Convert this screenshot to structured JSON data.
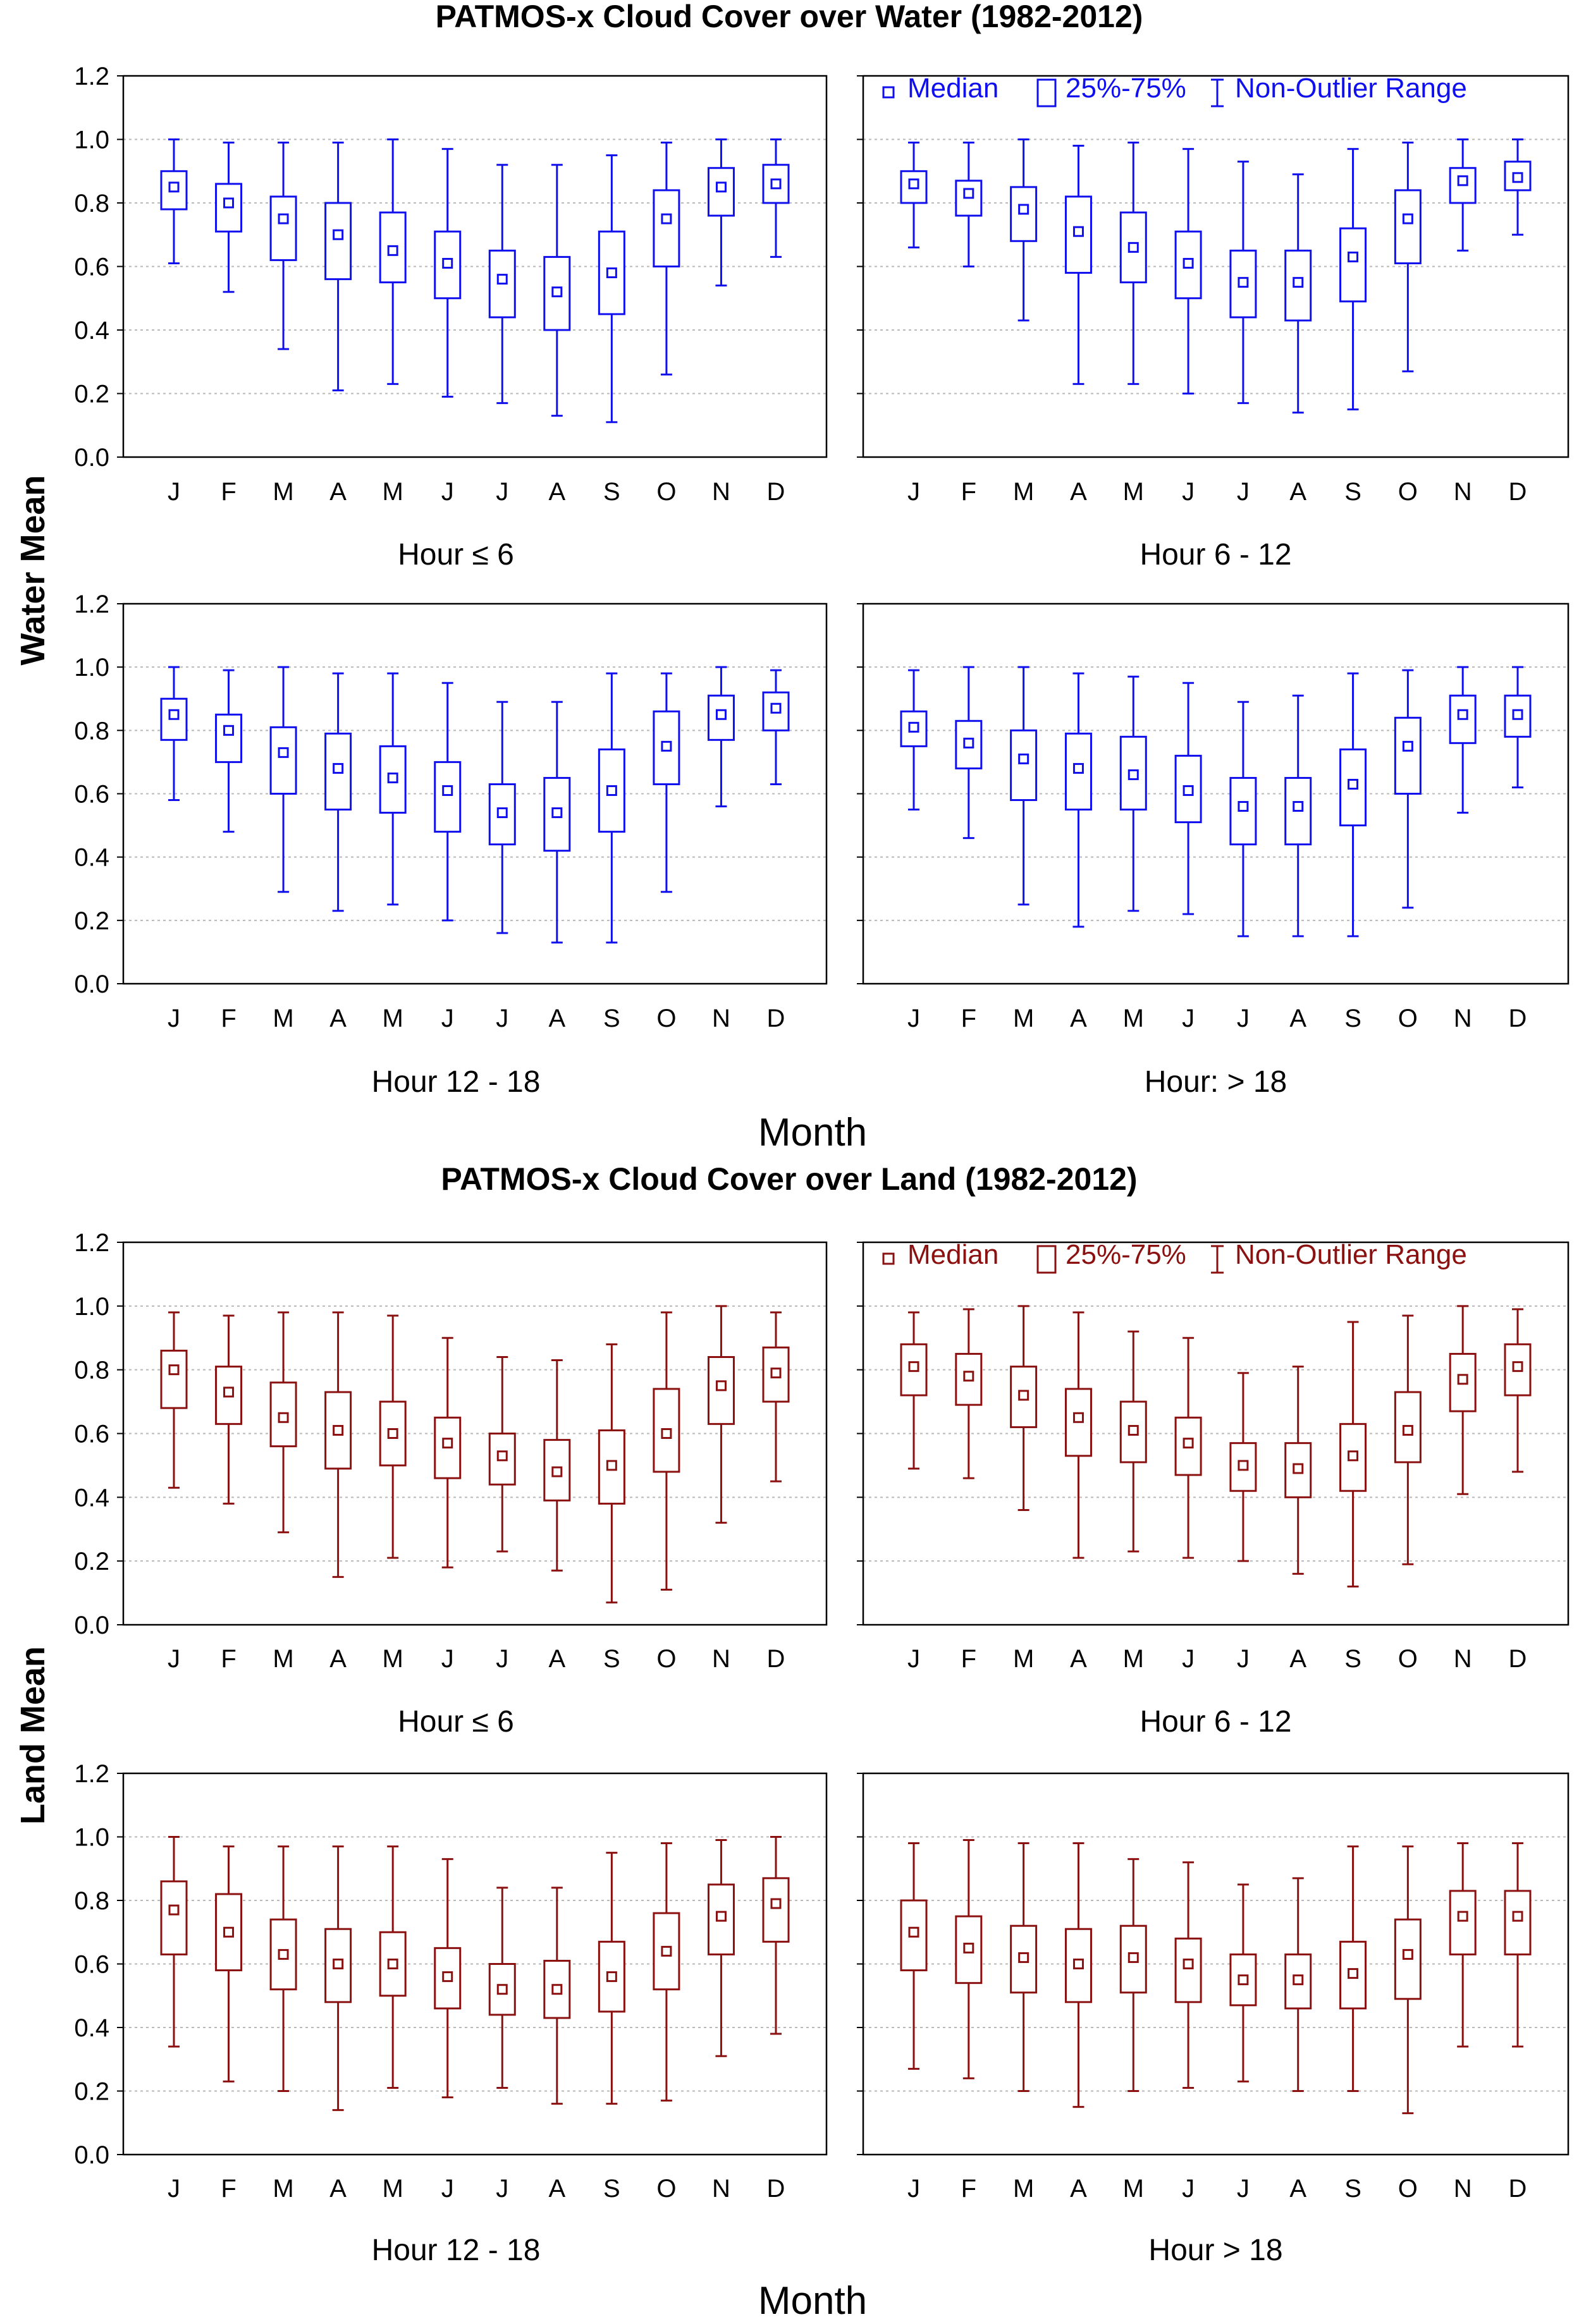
{
  "colors": {
    "water": "#1010ee",
    "land": "#8b1010"
  },
  "legend": {
    "median": "Median",
    "iqr": "25%-75%",
    "range": "Non-Outlier Range"
  },
  "chart_data": [
    {
      "type": "boxplot",
      "title": "PATMOS-x Cloud Cover over Water (1982-2012)",
      "xlabel": "Month",
      "ylabel": "Water Mean",
      "color_key": "water",
      "ylim": [
        0,
        1.2
      ],
      "yticks": [
        "0.0",
        "0.2",
        "0.4",
        "0.6",
        "0.8",
        "1.0",
        "1.2"
      ],
      "categories": [
        "J",
        "F",
        "M",
        "A",
        "M",
        "J",
        "J",
        "A",
        "S",
        "O",
        "N",
        "D"
      ],
      "panels": [
        {
          "subtitle": "Hour ≤  6",
          "min": [
            0.61,
            0.52,
            0.34,
            0.21,
            0.23,
            0.19,
            0.17,
            0.13,
            0.11,
            0.26,
            0.54,
            0.63
          ],
          "q1": [
            0.78,
            0.71,
            0.62,
            0.56,
            0.55,
            0.5,
            0.44,
            0.4,
            0.45,
            0.6,
            0.76,
            0.8
          ],
          "median": [
            0.85,
            0.8,
            0.75,
            0.7,
            0.65,
            0.61,
            0.56,
            0.52,
            0.58,
            0.75,
            0.85,
            0.86
          ],
          "q3": [
            0.9,
            0.86,
            0.82,
            0.8,
            0.77,
            0.71,
            0.65,
            0.63,
            0.71,
            0.84,
            0.91,
            0.92
          ],
          "max": [
            1.0,
            0.99,
            0.99,
            0.99,
            1.0,
            0.97,
            0.92,
            0.92,
            0.95,
            0.99,
            1.0,
            1.0
          ]
        },
        {
          "subtitle": "Hour 6 - 12",
          "legend": true,
          "min": [
            0.66,
            0.6,
            0.43,
            0.23,
            0.23,
            0.2,
            0.17,
            0.14,
            0.15,
            0.27,
            0.65,
            0.7
          ],
          "q1": [
            0.8,
            0.76,
            0.68,
            0.58,
            0.55,
            0.5,
            0.44,
            0.43,
            0.49,
            0.61,
            0.8,
            0.84
          ],
          "median": [
            0.86,
            0.83,
            0.78,
            0.71,
            0.66,
            0.61,
            0.55,
            0.55,
            0.63,
            0.75,
            0.87,
            0.88
          ],
          "q3": [
            0.9,
            0.87,
            0.85,
            0.82,
            0.77,
            0.71,
            0.65,
            0.65,
            0.72,
            0.84,
            0.91,
            0.93
          ],
          "max": [
            0.99,
            0.99,
            1.0,
            0.98,
            0.99,
            0.97,
            0.93,
            0.89,
            0.97,
            0.99,
            1.0,
            1.0
          ]
        },
        {
          "subtitle": "Hour 12 - 18",
          "min": [
            0.58,
            0.48,
            0.29,
            0.23,
            0.25,
            0.2,
            0.16,
            0.13,
            0.13,
            0.29,
            0.56,
            0.63
          ],
          "q1": [
            0.77,
            0.7,
            0.6,
            0.55,
            0.54,
            0.48,
            0.44,
            0.42,
            0.48,
            0.63,
            0.77,
            0.8
          ],
          "median": [
            0.85,
            0.8,
            0.73,
            0.68,
            0.65,
            0.61,
            0.54,
            0.54,
            0.61,
            0.75,
            0.85,
            0.87
          ],
          "q3": [
            0.9,
            0.85,
            0.81,
            0.79,
            0.75,
            0.7,
            0.63,
            0.65,
            0.74,
            0.86,
            0.91,
            0.92
          ],
          "max": [
            1.0,
            0.99,
            1.0,
            0.98,
            0.98,
            0.95,
            0.89,
            0.89,
            0.98,
            0.98,
            1.0,
            0.99
          ]
        },
        {
          "subtitle": "Hour: > 18",
          "min": [
            0.55,
            0.46,
            0.25,
            0.18,
            0.23,
            0.22,
            0.15,
            0.15,
            0.15,
            0.24,
            0.54,
            0.62
          ],
          "q1": [
            0.75,
            0.68,
            0.58,
            0.55,
            0.55,
            0.51,
            0.44,
            0.44,
            0.5,
            0.6,
            0.76,
            0.78
          ],
          "median": [
            0.81,
            0.76,
            0.71,
            0.68,
            0.66,
            0.61,
            0.56,
            0.56,
            0.63,
            0.75,
            0.85,
            0.85
          ],
          "q3": [
            0.86,
            0.83,
            0.8,
            0.79,
            0.78,
            0.72,
            0.65,
            0.65,
            0.74,
            0.84,
            0.91,
            0.91
          ],
          "max": [
            0.99,
            1.0,
            1.0,
            0.98,
            0.97,
            0.95,
            0.89,
            0.91,
            0.98,
            0.99,
            1.0,
            1.0
          ]
        }
      ]
    },
    {
      "type": "boxplot",
      "title": "PATMOS-x Cloud Cover over Land (1982-2012)",
      "xlabel": "Month",
      "ylabel": "Land Mean",
      "color_key": "land",
      "ylim": [
        0,
        1.2
      ],
      "yticks": [
        "0.0",
        "0.2",
        "0.4",
        "0.6",
        "0.8",
        "1.0",
        "1.2"
      ],
      "categories": [
        "J",
        "F",
        "M",
        "A",
        "M",
        "J",
        "J",
        "A",
        "S",
        "O",
        "N",
        "D"
      ],
      "panels": [
        {
          "subtitle": "Hour ≤  6",
          "min": [
            0.43,
            0.38,
            0.29,
            0.15,
            0.21,
            0.18,
            0.23,
            0.17,
            0.07,
            0.11,
            0.32,
            0.45
          ],
          "q1": [
            0.68,
            0.63,
            0.56,
            0.49,
            0.5,
            0.46,
            0.44,
            0.39,
            0.38,
            0.48,
            0.63,
            0.7
          ],
          "median": [
            0.8,
            0.73,
            0.65,
            0.61,
            0.6,
            0.57,
            0.53,
            0.48,
            0.5,
            0.6,
            0.75,
            0.79
          ],
          "q3": [
            0.86,
            0.81,
            0.76,
            0.73,
            0.7,
            0.65,
            0.6,
            0.58,
            0.61,
            0.74,
            0.84,
            0.87
          ],
          "max": [
            0.98,
            0.97,
            0.98,
            0.98,
            0.97,
            0.9,
            0.84,
            0.83,
            0.88,
            0.98,
            1.0,
            0.98
          ]
        },
        {
          "subtitle": "Hour 6 - 12",
          "legend": true,
          "min": [
            0.49,
            0.46,
            0.36,
            0.21,
            0.23,
            0.21,
            0.2,
            0.16,
            0.12,
            0.19,
            0.41,
            0.48
          ],
          "q1": [
            0.72,
            0.69,
            0.62,
            0.53,
            0.51,
            0.47,
            0.42,
            0.4,
            0.42,
            0.51,
            0.67,
            0.72
          ],
          "median": [
            0.81,
            0.78,
            0.72,
            0.65,
            0.61,
            0.57,
            0.5,
            0.49,
            0.53,
            0.61,
            0.77,
            0.81
          ],
          "q3": [
            0.88,
            0.85,
            0.81,
            0.74,
            0.7,
            0.65,
            0.57,
            0.57,
            0.63,
            0.73,
            0.85,
            0.88
          ],
          "max": [
            0.98,
            0.99,
            1.0,
            0.98,
            0.92,
            0.9,
            0.79,
            0.81,
            0.95,
            0.97,
            1.0,
            0.99
          ]
        },
        {
          "subtitle": "Hour 12 - 18",
          "min": [
            0.34,
            0.23,
            0.2,
            0.14,
            0.21,
            0.18,
            0.21,
            0.16,
            0.16,
            0.17,
            0.31,
            0.38
          ],
          "q1": [
            0.63,
            0.58,
            0.52,
            0.48,
            0.5,
            0.46,
            0.44,
            0.43,
            0.45,
            0.52,
            0.63,
            0.67
          ],
          "median": [
            0.77,
            0.7,
            0.63,
            0.6,
            0.6,
            0.56,
            0.52,
            0.52,
            0.56,
            0.64,
            0.75,
            0.79
          ],
          "q3": [
            0.86,
            0.82,
            0.74,
            0.71,
            0.7,
            0.65,
            0.6,
            0.61,
            0.67,
            0.76,
            0.85,
            0.87
          ],
          "max": [
            1.0,
            0.97,
            0.97,
            0.97,
            0.97,
            0.93,
            0.84,
            0.84,
            0.95,
            0.98,
            0.99,
            1.0
          ]
        },
        {
          "subtitle": "Hour > 18",
          "min": [
            0.27,
            0.24,
            0.2,
            0.15,
            0.2,
            0.21,
            0.23,
            0.2,
            0.2,
            0.13,
            0.34,
            0.34
          ],
          "q1": [
            0.58,
            0.54,
            0.51,
            0.48,
            0.51,
            0.48,
            0.47,
            0.46,
            0.46,
            0.49,
            0.63,
            0.63
          ],
          "median": [
            0.7,
            0.65,
            0.62,
            0.6,
            0.62,
            0.6,
            0.55,
            0.55,
            0.57,
            0.63,
            0.75,
            0.75
          ],
          "q3": [
            0.8,
            0.75,
            0.72,
            0.71,
            0.72,
            0.68,
            0.63,
            0.63,
            0.67,
            0.74,
            0.83,
            0.83
          ],
          "max": [
            0.98,
            0.99,
            0.98,
            0.98,
            0.93,
            0.92,
            0.85,
            0.87,
            0.97,
            0.97,
            0.98,
            0.98
          ]
        }
      ]
    }
  ]
}
